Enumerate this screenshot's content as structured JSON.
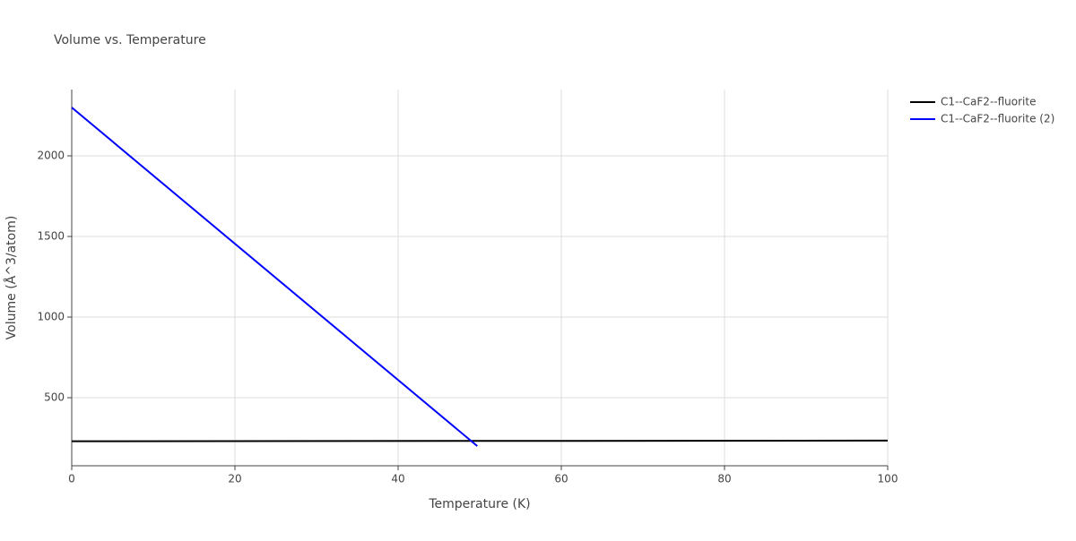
{
  "chart_data": {
    "type": "line",
    "title": "Volume vs. Temperature",
    "x_label": "Temperature (K)",
    "y_label": "Volume (Å^3/atom)",
    "series": [
      {
        "name": "C1--CaF2--fluorite",
        "color": "#000000",
        "x": [
          0,
          100
        ],
        "values": [
          230,
          234
        ]
      },
      {
        "name": "C1--CaF2--fluorite (2)",
        "color": "#0000ff",
        "x": [
          0,
          49.7
        ],
        "values": [
          2300,
          200
        ]
      }
    ],
    "xlim": [
      0,
      100
    ],
    "xticks": [
      0,
      20,
      40,
      60,
      80,
      100
    ],
    "ylim": [
      78,
      2411
    ],
    "yticks": [
      500,
      1000,
      1500,
      2000
    ],
    "grid": true,
    "legend": "outside-top-right"
  }
}
